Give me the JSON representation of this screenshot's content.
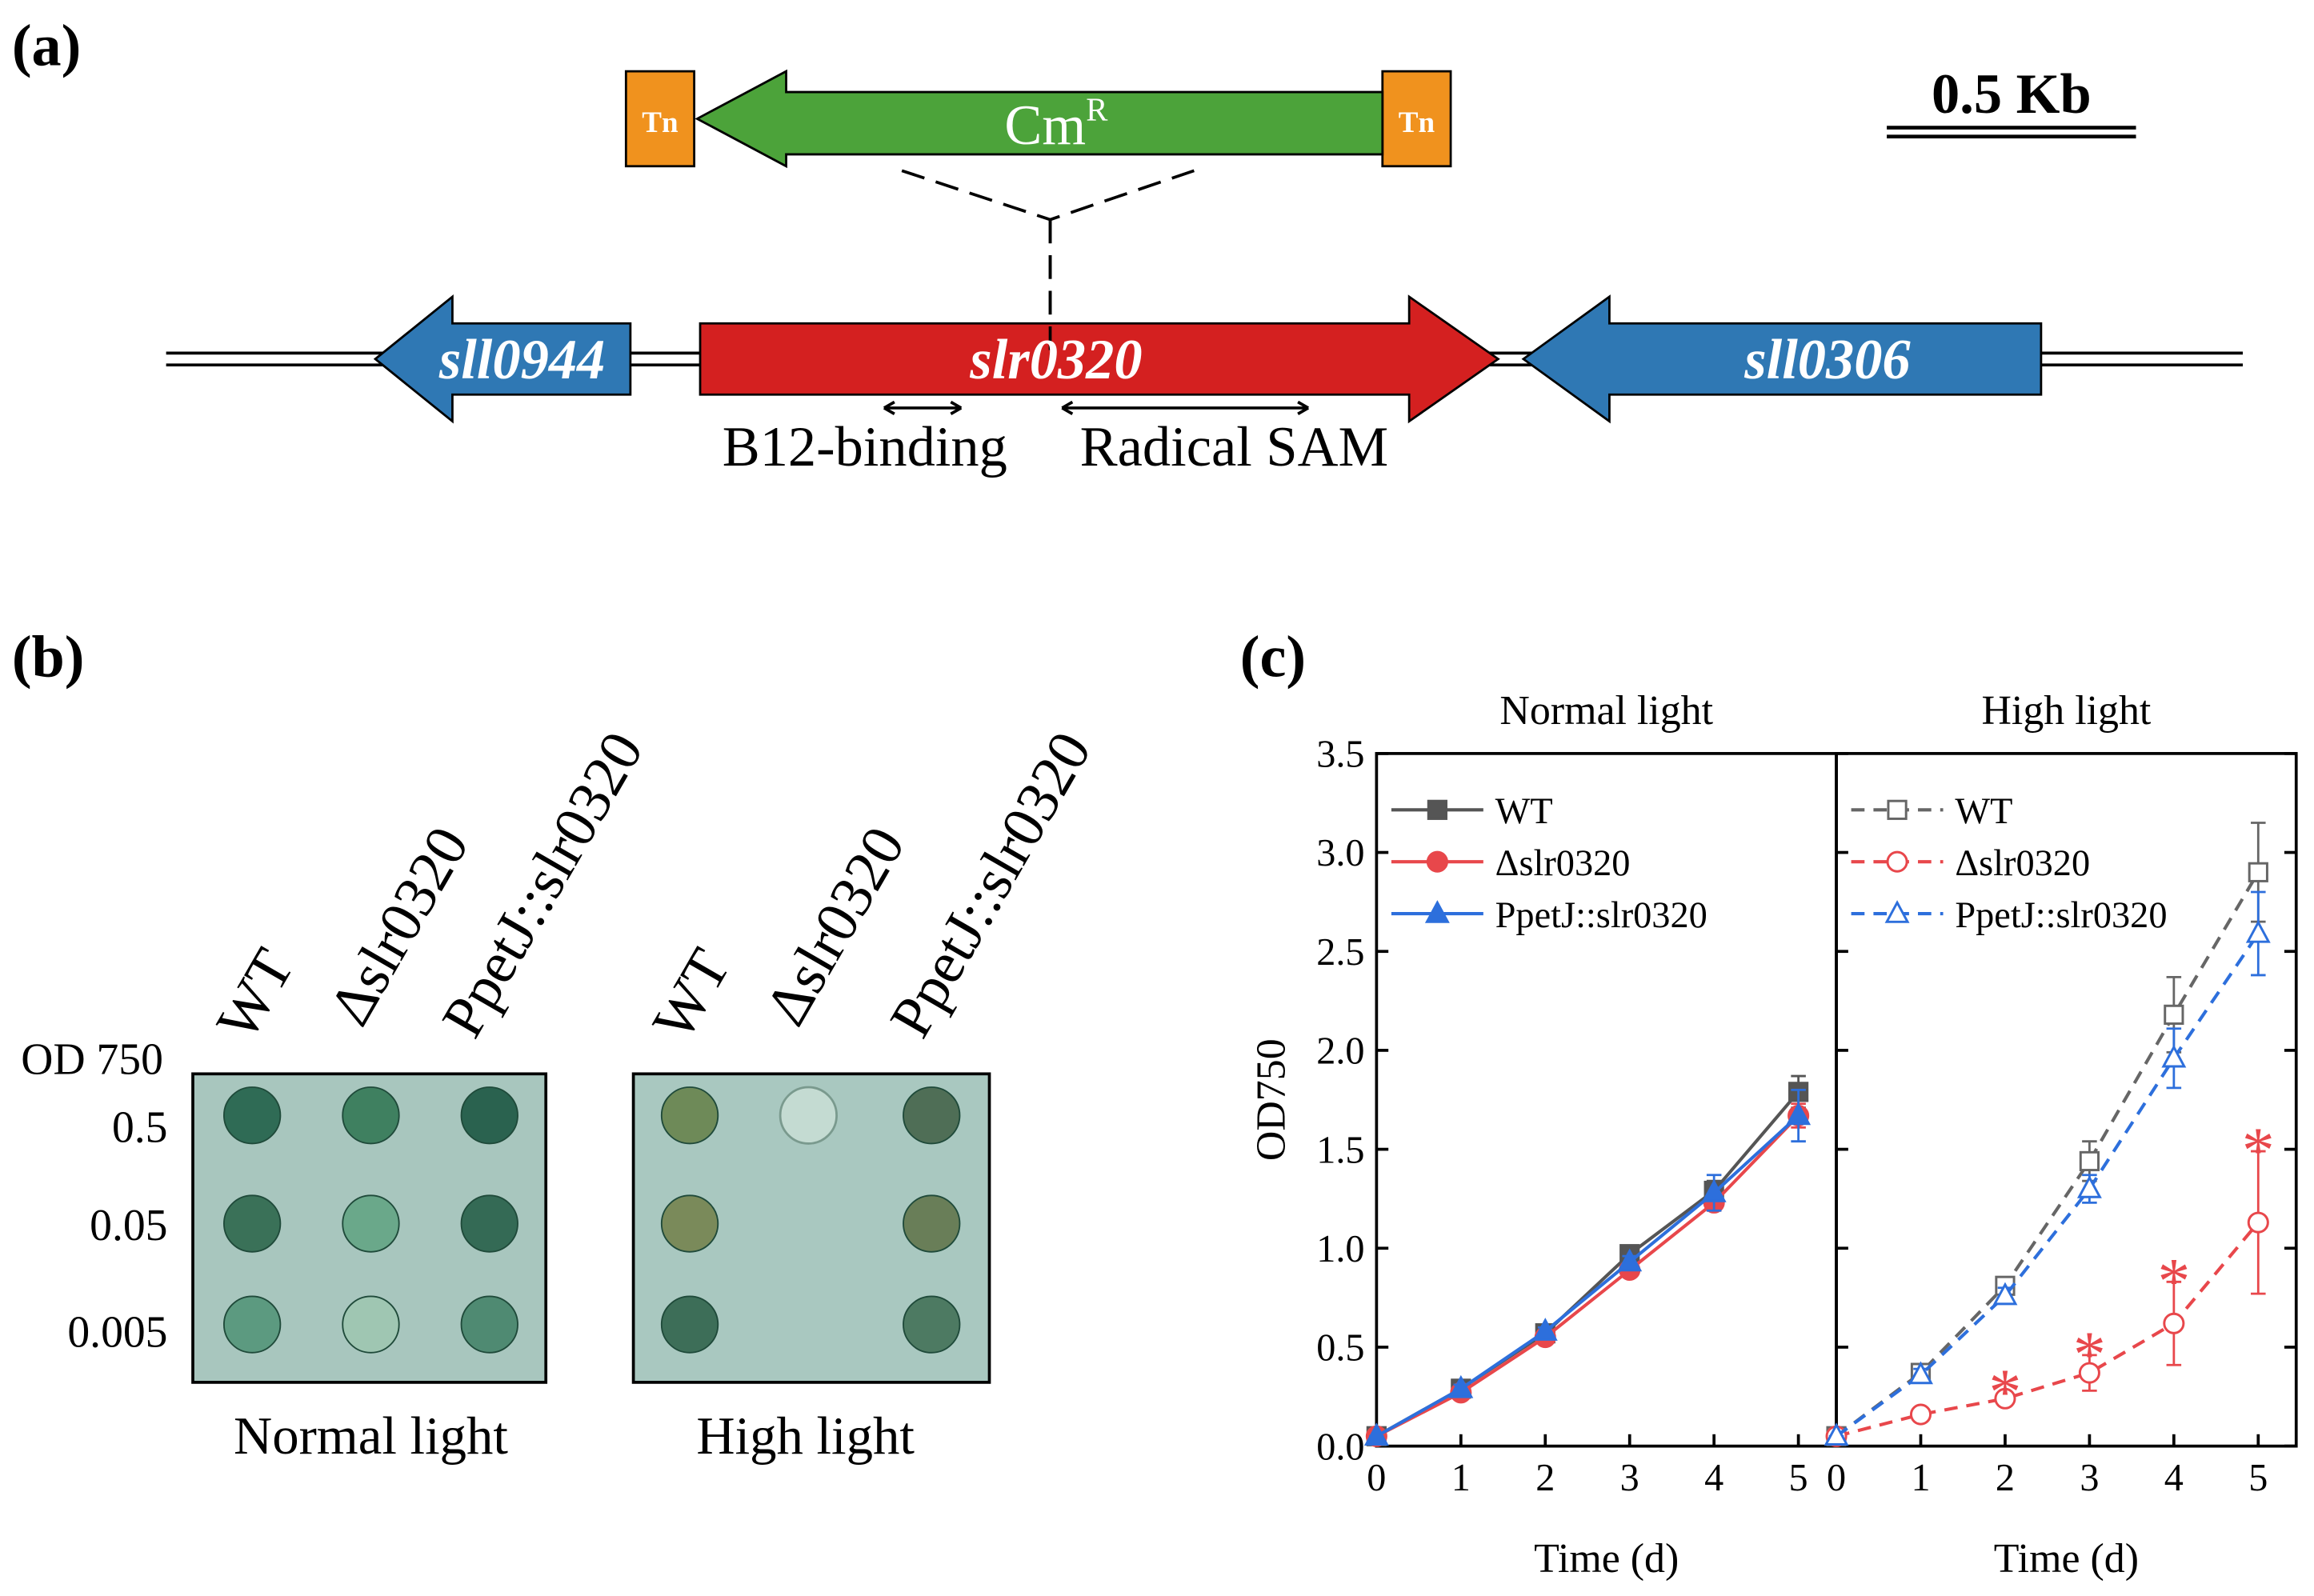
{
  "panel_a": {
    "label": "(a)",
    "transposon": "Tn",
    "cassette": "Cm",
    "cassette_superscript": "R",
    "scale_bar": "0.5 Kb",
    "genes": [
      "sll0944",
      "slr0320",
      "sll0306"
    ],
    "domains": [
      "B12-binding",
      "Radical SAM"
    ]
  },
  "panel_b": {
    "label": "(b)",
    "strains": [
      "WT",
      "Δslr0320",
      "PpetJ::slr0320"
    ],
    "density_title": "OD 750",
    "densities": [
      "0.5",
      "0.05",
      "0.005"
    ],
    "conditions": [
      "Normal light",
      "High light"
    ]
  },
  "panel_c": {
    "label": "(c)"
  },
  "chart_data": [
    {
      "type": "line",
      "title": "Normal light",
      "x_label": "Time (d)",
      "y_label": "OD750",
      "x": [
        0,
        1,
        2,
        3,
        4,
        5
      ],
      "xlim": [
        0,
        5.45
      ],
      "xticks": [
        0,
        1,
        2,
        3,
        4,
        5
      ],
      "ylim": [
        0,
        3.5
      ],
      "yticks": [
        {
          "value": 0,
          "label": "0.0"
        },
        0.5,
        {
          "value": 1,
          "label": "1.0"
        },
        1.5,
        {
          "value": 2,
          "label": "2.0"
        },
        2.5,
        {
          "value": 3,
          "label": "3.0"
        },
        3.5
      ],
      "legend": "upper left",
      "series": [
        {
          "name": "WT",
          "color": "#555555",
          "marker": "square",
          "filled": true,
          "linestyle": "solid",
          "values": [
            0.05,
            0.29,
            0.57,
            0.97,
            1.29,
            1.79
          ],
          "errors": [
            0,
            0.02,
            0.02,
            0.03,
            0.05,
            0.08
          ]
        },
        {
          "name": "Δslr0320",
          "color": "#e8474b",
          "marker": "circle",
          "filled": true,
          "linestyle": "solid",
          "values": [
            0.05,
            0.27,
            0.55,
            0.89,
            1.23,
            1.67
          ],
          "errors": [
            0,
            0.02,
            0.02,
            0.03,
            0.04,
            0.06
          ]
        },
        {
          "name": "PpetJ::slr0320",
          "color": "#2d6fdc",
          "marker": "triangle",
          "filled": true,
          "linestyle": "solid",
          "values": [
            0.05,
            0.29,
            0.58,
            0.93,
            1.28,
            1.67
          ],
          "errors": [
            0,
            0.02,
            0.02,
            0.03,
            0.09,
            0.13
          ]
        }
      ]
    },
    {
      "type": "line",
      "title": "High light",
      "x_label": "Time (d)",
      "x": [
        0,
        1,
        2,
        3,
        4,
        5
      ],
      "xlim": [
        0,
        5.45
      ],
      "xticks": [
        0,
        1,
        2,
        3,
        4,
        5
      ],
      "ylim": [
        0,
        3.5
      ],
      "yticks": [
        0,
        0.5,
        1,
        1.5,
        2,
        2.5,
        3,
        3.5
      ],
      "legend": "upper left",
      "series": [
        {
          "name": "WT",
          "color": "#666666",
          "marker": "square",
          "filled": false,
          "linestyle": "dashed",
          "values": [
            0.05,
            0.37,
            0.81,
            1.44,
            2.18,
            2.9
          ],
          "errors": [
            0,
            0.03,
            0.04,
            0.1,
            0.19,
            0.25
          ]
        },
        {
          "name": "Δslr0320",
          "color": "#e8474b",
          "marker": "circle",
          "filled": false,
          "linestyle": "dashed",
          "values": [
            0.05,
            0.16,
            0.24,
            0.37,
            0.62,
            1.13
          ],
          "errors": [
            0,
            0.02,
            0.03,
            0.09,
            0.21,
            0.36
          ]
        },
        {
          "name": "PpetJ::slr0320",
          "color": "#2d6fdc",
          "marker": "triangle",
          "filled": false,
          "linestyle": "dashed",
          "values": [
            0.05,
            0.36,
            0.76,
            1.3,
            1.96,
            2.59
          ],
          "errors": [
            0,
            0.03,
            0.04,
            0.07,
            0.15,
            0.21
          ]
        }
      ],
      "significance": {
        "series": 1,
        "x": [
          2,
          3,
          4,
          5
        ],
        "label": "*"
      }
    }
  ]
}
